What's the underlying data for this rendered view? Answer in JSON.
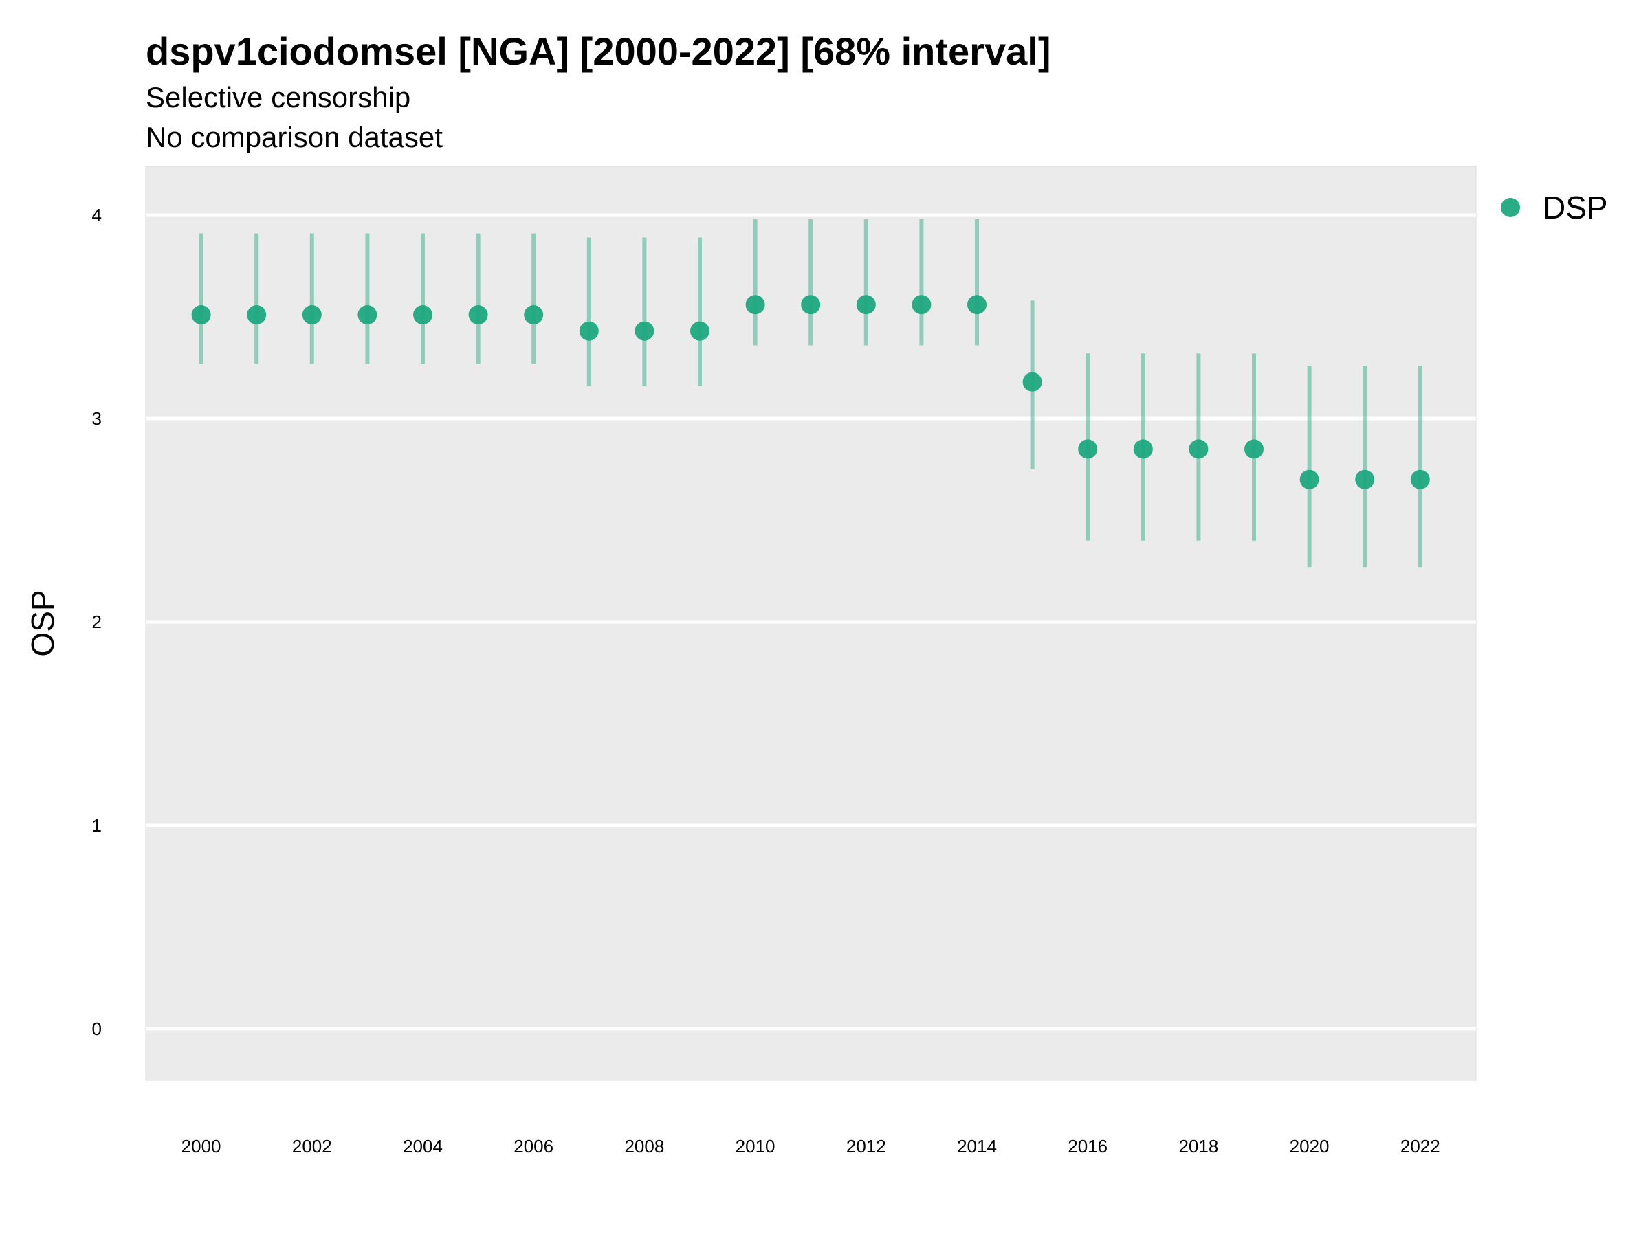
{
  "chart_data": {
    "type": "scatter",
    "title": "dspv1ciodomsel [NGA] [2000-2022] [68% interval]",
    "subtitle": "Selective censorship",
    "subtitle2": "No comparison dataset",
    "xlabel": "",
    "ylabel": "OSP",
    "ylim": [
      -0.25,
      4.25
    ],
    "xlim": [
      1999,
      2023
    ],
    "y_ticks": [
      0,
      1,
      2,
      3,
      4
    ],
    "x_ticks": [
      2000,
      2002,
      2004,
      2006,
      2008,
      2010,
      2012,
      2014,
      2016,
      2018,
      2020,
      2022
    ],
    "grid": "y-major",
    "legend": "right",
    "series": [
      {
        "name": "DSP",
        "color": "#1FA87F",
        "x": [
          2000,
          2001,
          2002,
          2003,
          2004,
          2005,
          2006,
          2007,
          2008,
          2009,
          2010,
          2011,
          2012,
          2013,
          2014,
          2015,
          2016,
          2017,
          2018,
          2019,
          2020,
          2021,
          2022
        ],
        "y": [
          3.51,
          3.51,
          3.51,
          3.51,
          3.51,
          3.51,
          3.51,
          3.43,
          3.43,
          3.43,
          3.56,
          3.56,
          3.56,
          3.56,
          3.56,
          3.18,
          2.85,
          2.85,
          2.85,
          2.85,
          2.7,
          2.7,
          2.7
        ],
        "lower": [
          3.27,
          3.27,
          3.27,
          3.27,
          3.27,
          3.27,
          3.27,
          3.16,
          3.16,
          3.16,
          3.36,
          3.36,
          3.36,
          3.36,
          3.36,
          2.75,
          2.4,
          2.4,
          2.4,
          2.4,
          2.27,
          2.27,
          2.27
        ],
        "upper": [
          3.91,
          3.91,
          3.91,
          3.91,
          3.91,
          3.91,
          3.91,
          3.89,
          3.89,
          3.89,
          3.98,
          3.98,
          3.98,
          3.98,
          3.98,
          3.58,
          3.32,
          3.32,
          3.32,
          3.32,
          3.26,
          3.26,
          3.26
        ]
      }
    ]
  }
}
